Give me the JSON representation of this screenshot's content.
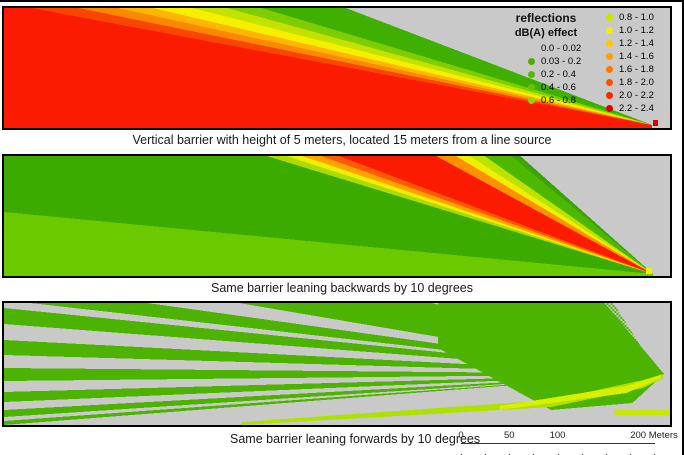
{
  "figure": {
    "panels": [
      {
        "caption": "Vertical barrier with height of 5 meters, located 15 meters from a line source"
      },
      {
        "caption": "Same barrier leaning backwards by 10 degrees"
      },
      {
        "caption": "Same barrier leaning forwards by 10 degrees"
      }
    ],
    "legend": {
      "title": "reflections",
      "subtitle": "dB(A) effect",
      "left_entries": [
        {
          "label": "0.0 - 0.02",
          "color": null
        },
        {
          "label": "0.03 - 0.2",
          "color": "#4FAE00"
        },
        {
          "label": "0.2 - 0.4",
          "color": "#58B800"
        },
        {
          "label": "0.4 - 0.6",
          "color": "#6CC400"
        },
        {
          "label": "0.6 - 0.8",
          "color": "#96D200"
        }
      ],
      "right_entries": [
        {
          "label": "0.8 - 1.0",
          "color": "#C8E800"
        },
        {
          "label": "1.0 - 1.2",
          "color": "#F0F000"
        },
        {
          "label": "1.2 - 1.4",
          "color": "#FFC800"
        },
        {
          "label": "1.4 - 1.6",
          "color": "#FFA000"
        },
        {
          "label": "1.6 - 1.8",
          "color": "#FF7800"
        },
        {
          "label": "1.8 - 2.0",
          "color": "#FF5000"
        },
        {
          "label": "2.0 - 2.2",
          "color": "#F42800"
        },
        {
          "label": "2.2 - 2.4",
          "color": "#DC0000"
        }
      ]
    },
    "scalebar": {
      "max_m": 200,
      "tick_interval_m": 25,
      "labels": [
        {
          "text": "0",
          "m": 0
        },
        {
          "text": "50",
          "m": 50
        },
        {
          "text": "100",
          "m": 100
        },
        {
          "text": "200 Meters",
          "m": 200
        }
      ]
    }
  },
  "chart_data": {
    "type": "heatmap",
    "title": "Noise barrier reflection maps (vertical cross-sections)",
    "legend_title": "reflections",
    "legend_subtitle": "dB(A) effect",
    "bins": [
      {
        "range": "0.0 - 0.02",
        "color": "none"
      },
      {
        "range": "0.03 - 0.2",
        "color": "#4FAE00"
      },
      {
        "range": "0.2 - 0.4",
        "color": "#58B800"
      },
      {
        "range": "0.4 - 0.6",
        "color": "#6CC400"
      },
      {
        "range": "0.6 - 0.8",
        "color": "#96D200"
      },
      {
        "range": "0.8 - 1.0",
        "color": "#C8E800"
      },
      {
        "range": "1.0 - 1.2",
        "color": "#F0F000"
      },
      {
        "range": "1.2 - 1.4",
        "color": "#FFC800"
      },
      {
        "range": "1.4 - 1.6",
        "color": "#FFA000"
      },
      {
        "range": "1.6 - 1.8",
        "color": "#FF7800"
      },
      {
        "range": "1.8 - 2.0",
        "color": "#FF5000"
      },
      {
        "range": "2.0 - 2.2",
        "color": "#F42800"
      },
      {
        "range": "2.2 - 2.4",
        "color": "#DC0000"
      }
    ],
    "panels": [
      {
        "caption": "Vertical barrier with height of 5 meters, located 15 meters from a line source",
        "pattern": "High reflection effect (red, >2 dB(A)) fills the region near the source; banded rainbow transition (orange-yellow-green) fans from the barrier tip at bottom right up to the top-left; grey = below 0.02 dB(A)."
      },
      {
        "caption": "Same barrier leaning backwards by 10 degrees",
        "pattern": "Reflected beam tilted upward: narrow red/orange/yellow fan from barrier tip at bottom right toward upper middle; ground-level region mostly green (0.03-0.8 dB(A)); grey above the fan."
      },
      {
        "caption": "Same barrier leaning forwards by 10 degrees",
        "pattern": "Interference-like alternating green/grey fringes fanning from the barrier at right; fringes merge into solid green near the barrier with a bright yellow-green band at the bottom right."
      }
    ],
    "scalebar": {
      "units": "Meters",
      "tick_labels": [
        0,
        50,
        100,
        200
      ],
      "max": 200,
      "tick_interval": 25
    }
  }
}
